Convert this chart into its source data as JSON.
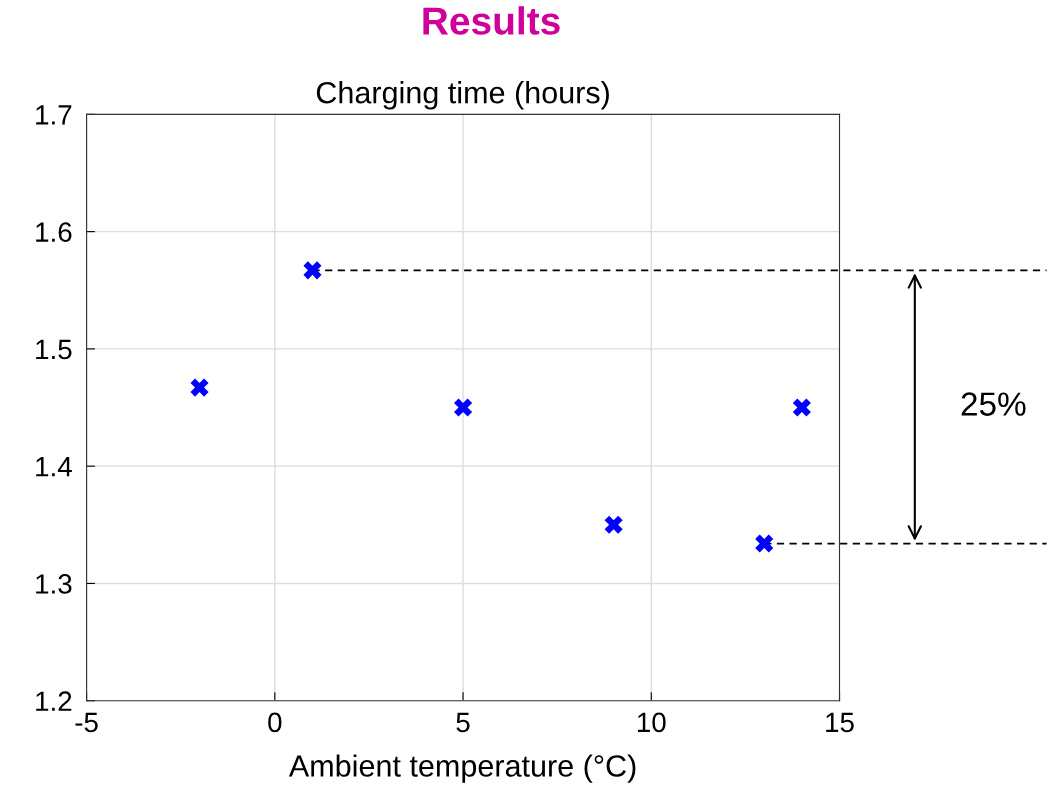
{
  "chart_data": {
    "type": "scatter",
    "title": "Results",
    "subtitle": "Charging time (hours)",
    "xlabel": "Ambient temperature (°C)",
    "x": [
      -2,
      1,
      5,
      9,
      13,
      14
    ],
    "series": [
      {
        "color": "#0000ff",
        "values": [
          1.467,
          1.567,
          1.45,
          1.35,
          1.334,
          1.45
        ]
      }
    ],
    "xlim": [
      -5,
      15
    ],
    "xticks": [
      -5,
      0,
      5,
      10,
      15
    ],
    "ylim": [
      1.2,
      1.7
    ],
    "yticks": [
      1.2,
      1.3,
      1.4,
      1.5,
      1.6,
      1.7
    ],
    "grid": true,
    "marker": "cross",
    "ref_lines": [
      {
        "axis": "y",
        "value": 1.567,
        "line_style": "dashed",
        "color": "#000000"
      },
      {
        "axis": "y",
        "value": 1.334,
        "line_style": "dashed",
        "color": "#000000"
      }
    ],
    "annotations": [
      "25%"
    ]
  }
}
